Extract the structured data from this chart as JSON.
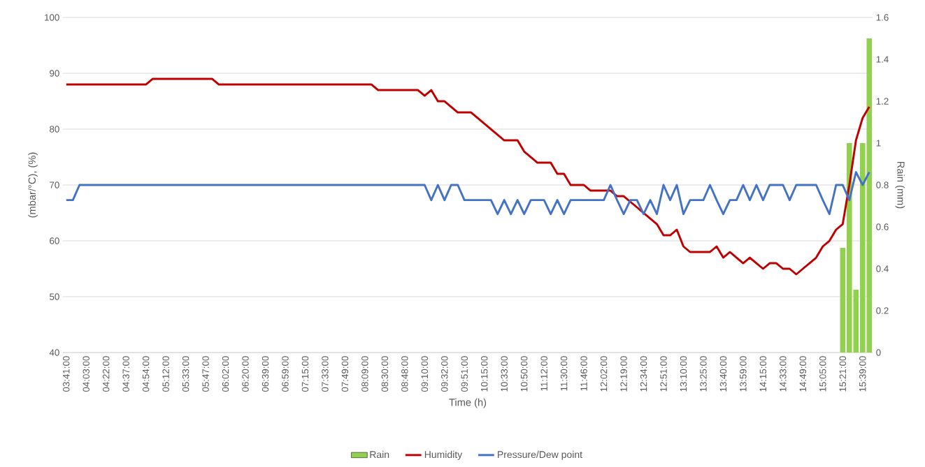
{
  "chart_data": {
    "type": "line",
    "xlabel": "Time (h)",
    "ylabel": "(mbar/°C), (%)",
    "y2label": "Rain (mm)",
    "categories": [
      "03:41:00",
      null,
      null,
      "04:03:00",
      null,
      null,
      "04:22:00",
      null,
      null,
      "04:37:00",
      null,
      null,
      "04:54:00",
      null,
      null,
      "05:12:00",
      null,
      null,
      "05:33:00",
      null,
      null,
      "05:47:00",
      null,
      null,
      "06:02:00",
      null,
      null,
      "06:20:00",
      null,
      null,
      "06:39:00",
      null,
      null,
      "06:59:00",
      null,
      null,
      "07:15:00",
      null,
      null,
      "07:33:00",
      null,
      null,
      "07:49:00",
      null,
      null,
      "08:09:00",
      null,
      null,
      "08:30:00",
      null,
      null,
      "08:48:00",
      null,
      null,
      "09:10:00",
      null,
      null,
      "09:32:00",
      null,
      null,
      "09:51:00",
      null,
      null,
      "10:15:00",
      null,
      null,
      "10:33:00",
      null,
      null,
      "10:50:00",
      null,
      null,
      "11:12:00",
      null,
      null,
      "11:30:00",
      null,
      null,
      "11:46:00",
      null,
      null,
      "12:02:00",
      null,
      null,
      "12:19:00",
      null,
      null,
      "12:34:00",
      null,
      null,
      "12:51:00",
      null,
      null,
      "13:10:00",
      null,
      null,
      "13:25:00",
      null,
      null,
      "13:40:00",
      null,
      null,
      "13:59:00",
      null,
      null,
      "14:15:00",
      null,
      null,
      "14:33:00",
      null,
      null,
      "14:49:00",
      null,
      null,
      "15:05:00",
      null,
      null,
      "15:21:00",
      null,
      null,
      "15:39:00",
      null
    ],
    "series": [
      {
        "name": "Rain",
        "type": "bar",
        "axis": "y2",
        "color": "#92d050",
        "values": [
          null,
          null,
          null,
          null,
          null,
          null,
          null,
          null,
          null,
          null,
          null,
          null,
          null,
          null,
          null,
          null,
          null,
          null,
          null,
          null,
          null,
          null,
          null,
          null,
          null,
          null,
          null,
          null,
          null,
          null,
          null,
          null,
          null,
          null,
          null,
          null,
          null,
          null,
          null,
          null,
          null,
          null,
          null,
          null,
          null,
          null,
          null,
          null,
          null,
          null,
          null,
          null,
          null,
          null,
          null,
          null,
          null,
          null,
          null,
          null,
          null,
          null,
          null,
          null,
          null,
          null,
          null,
          null,
          null,
          null,
          null,
          null,
          null,
          null,
          null,
          null,
          null,
          null,
          null,
          null,
          null,
          null,
          null,
          null,
          null,
          null,
          null,
          null,
          null,
          null,
          null,
          null,
          null,
          null,
          null,
          null,
          null,
          null,
          null,
          null,
          null,
          null,
          null,
          null,
          null,
          null,
          null,
          null,
          null,
          null,
          null,
          null,
          null,
          null,
          null,
          null,
          null,
          0.5,
          1.0,
          0.3,
          1.0,
          1.5
        ]
      },
      {
        "name": "Humidity",
        "color": "#c00000",
        "values": [
          88,
          88,
          88,
          88,
          88,
          88,
          88,
          88,
          88,
          88,
          88,
          88,
          88,
          89,
          89,
          89,
          89,
          89,
          89,
          89,
          89,
          89,
          89,
          88,
          88,
          88,
          88,
          88,
          88,
          88,
          88,
          88,
          88,
          88,
          88,
          88,
          88,
          88,
          88,
          88,
          88,
          88,
          88,
          88,
          88,
          88,
          88,
          87,
          87,
          87,
          87,
          87,
          87,
          87,
          86,
          87,
          85,
          85,
          84,
          83,
          83,
          83,
          82,
          81,
          80,
          79,
          78,
          78,
          78,
          76,
          75,
          74,
          74,
          74,
          72,
          72,
          70,
          70,
          70,
          69,
          69,
          69,
          69,
          68,
          68,
          67,
          66,
          65,
          64,
          63,
          61,
          61,
          62,
          59,
          58,
          58,
          58,
          58,
          59,
          57,
          58,
          57,
          56,
          57,
          56,
          55,
          56,
          56,
          55,
          55,
          54,
          55,
          56,
          57,
          59,
          60,
          62,
          63,
          70,
          78,
          82,
          84
        ]
      },
      {
        "name": "Pressure/Dew point",
        "color": "#4472c4",
        "values": [
          67.3,
          67.3,
          70,
          70,
          70,
          70,
          70,
          70,
          70,
          70,
          70,
          70,
          70,
          70,
          70,
          70,
          70,
          70,
          70,
          70,
          70,
          70,
          70,
          70,
          70,
          70,
          70,
          70,
          70,
          70,
          70,
          70,
          70,
          70,
          70,
          70,
          70,
          70,
          70,
          70,
          70,
          70,
          70,
          70,
          70,
          70,
          70,
          70,
          70,
          70,
          70,
          70,
          70,
          70,
          70,
          67.3,
          70,
          67.3,
          70,
          70,
          67.3,
          67.3,
          67.3,
          67.3,
          67.3,
          64.8,
          67.3,
          64.8,
          67.3,
          64.8,
          67.3,
          67.3,
          67.3,
          64.8,
          67.3,
          64.8,
          67.3,
          67.3,
          67.3,
          67.3,
          67.3,
          67.3,
          70,
          67.3,
          64.8,
          67.3,
          67.3,
          64.8,
          67.3,
          64.8,
          70,
          67.3,
          70,
          64.8,
          67.3,
          67.3,
          67.3,
          70,
          67.3,
          64.8,
          67.3,
          67.3,
          70,
          67.3,
          70,
          67.3,
          70,
          70,
          70,
          67.3,
          70,
          70,
          70,
          70,
          67.3,
          64.8,
          70,
          70,
          67.3,
          72.3,
          70,
          72.3
        ]
      }
    ],
    "ylim": [
      40,
      100
    ],
    "yticks": [
      40,
      50,
      60,
      70,
      80,
      90,
      100
    ],
    "y2lim": [
      0,
      1.6
    ],
    "y2ticks": [
      0,
      0.2,
      0.4,
      0.6,
      0.8,
      1,
      1.2,
      1.4,
      1.6
    ],
    "grid": "y",
    "legend": "bottom"
  }
}
